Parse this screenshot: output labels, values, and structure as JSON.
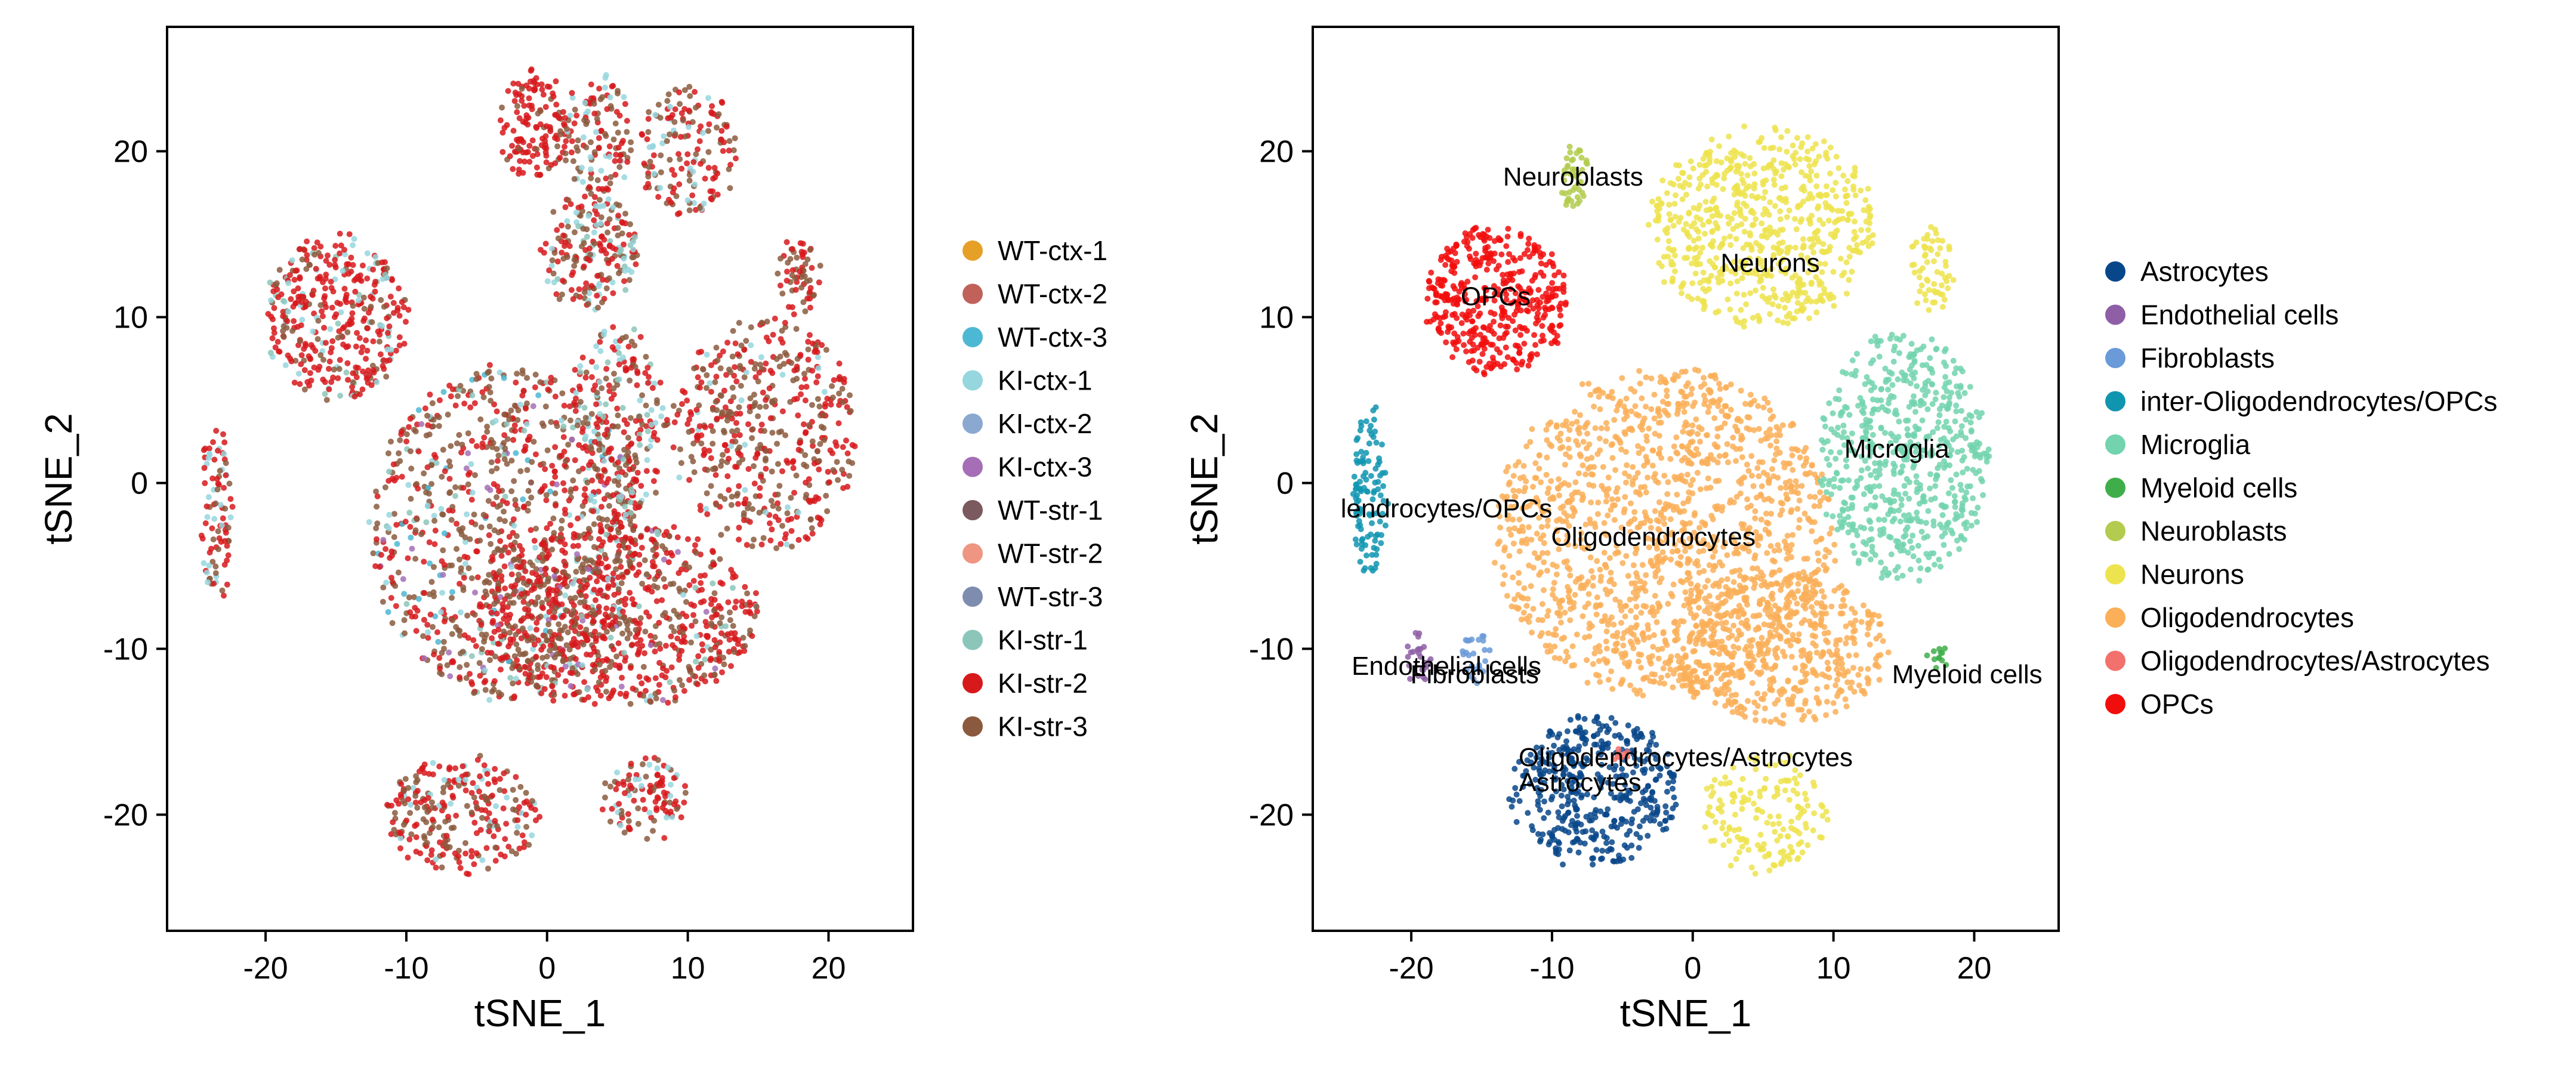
{
  "chart_data": [
    {
      "type": "scatter",
      "title": "",
      "xlabel": "tSNE_1",
      "ylabel": "tSNE_2",
      "xlim": [
        -27,
        26
      ],
      "ylim": [
        -27,
        27.5
      ],
      "xticks": [
        -20,
        -10,
        0,
        10,
        20
      ],
      "xtick_labels": [
        "-20",
        "-10",
        "0",
        "10",
        "20"
      ],
      "yticks": [
        -20,
        -10,
        0,
        10,
        20
      ],
      "ytick_labels": [
        "-20",
        "-10",
        "0",
        "10",
        "20"
      ],
      "grid": false,
      "legend_position": "right",
      "legend": [
        {
          "label": "WT-ctx-1",
          "color": "#E69F27"
        },
        {
          "label": "WT-ctx-2",
          "color": "#C0625A"
        },
        {
          "label": "WT-ctx-3",
          "color": "#4DB8D4"
        },
        {
          "label": "KI-ctx-1",
          "color": "#96D6DE"
        },
        {
          "label": "KI-ctx-2",
          "color": "#8AA8D0"
        },
        {
          "label": "KI-ctx-3",
          "color": "#A56EB6"
        },
        {
          "label": "WT-str-1",
          "color": "#7A5A5E"
        },
        {
          "label": "WT-str-2",
          "color": "#EE9682"
        },
        {
          "label": "WT-str-3",
          "color": "#7E8CB0"
        },
        {
          "label": "KI-str-1",
          "color": "#8CC6BA"
        },
        {
          "label": "KI-str-2",
          "color": "#D7191C"
        },
        {
          "label": "KI-str-3",
          "color": "#8B5A3E"
        }
      ],
      "clusters": [
        {
          "x": -3,
          "y": -3,
          "rx": 9.5,
          "ry": 10,
          "n": 950,
          "mix": [
            0.35,
            0.45,
            0.06,
            0.05,
            0.04,
            0.05
          ]
        },
        {
          "x": 5,
          "y": -8,
          "rx": 10,
          "ry": 5.5,
          "n": 800,
          "mix": [
            0.55,
            0.35,
            0.04,
            0.03,
            0.03
          ]
        },
        {
          "x": -15,
          "y": 10,
          "rx": 5,
          "ry": 5,
          "n": 380,
          "mix": [
            0.7,
            0.15,
            0.1,
            0.05
          ]
        },
        {
          "x": 15.5,
          "y": 3,
          "rx": 6.5,
          "ry": 7,
          "n": 480,
          "mix": [
            0.5,
            0.45,
            0.05
          ]
        },
        {
          "x": 3,
          "y": 14,
          "rx": 3.5,
          "ry": 3.5,
          "n": 200,
          "mix": [
            0.35,
            0.35,
            0.2,
            0.1
          ]
        },
        {
          "x": 5,
          "y": 3.5,
          "rx": 3.5,
          "ry": 6,
          "n": 260,
          "mix": [
            0.45,
            0.25,
            0.2,
            0.1
          ]
        },
        {
          "x": -1,
          "y": 21.5,
          "rx": 2.5,
          "ry": 3.5,
          "n": 130,
          "mix": [
            0.8,
            0.2
          ]
        },
        {
          "x": 3.5,
          "y": 21,
          "rx": 2.5,
          "ry": 3.5,
          "n": 130,
          "mix": [
            0.4,
            0.4,
            0.2
          ]
        },
        {
          "x": 10,
          "y": 20,
          "rx": 3.5,
          "ry": 4,
          "n": 160,
          "mix": [
            0.45,
            0.4,
            0.15
          ]
        },
        {
          "x": -6,
          "y": -20,
          "rx": 5.5,
          "ry": 3.5,
          "n": 260,
          "mix": [
            0.55,
            0.3,
            0.15
          ]
        },
        {
          "x": 7,
          "y": -19,
          "rx": 3,
          "ry": 2.5,
          "n": 110,
          "mix": [
            0.5,
            0.3,
            0.2
          ]
        },
        {
          "x": -23.5,
          "y": -2,
          "rx": 1.1,
          "ry": 5.5,
          "n": 90,
          "mix": [
            0.5,
            0.3,
            0.2
          ]
        },
        {
          "x": 18,
          "y": 12.5,
          "rx": 1.5,
          "ry": 2.5,
          "n": 60,
          "mix": [
            0.5,
            0.5
          ]
        }
      ],
      "cluster_palette": [
        "#D7191C",
        "#8B5A3E",
        "#96D6DE",
        "#8CC6BA",
        "#A56EB6",
        "#4DB8D4"
      ]
    },
    {
      "type": "scatter",
      "title": "",
      "xlabel": "tSNE_1",
      "ylabel": "tSNE_2",
      "xlim": [
        -27,
        26
      ],
      "ylim": [
        -27,
        27.5
      ],
      "xticks": [
        -20,
        -10,
        0,
        10,
        20
      ],
      "xtick_labels": [
        "-20",
        "-10",
        "0",
        "10",
        "20"
      ],
      "yticks": [
        -20,
        -10,
        0,
        10,
        20
      ],
      "ytick_labels": [
        "-20",
        "-10",
        "0",
        "10",
        "20"
      ],
      "grid": false,
      "legend_position": "right",
      "legend": [
        {
          "label": "Astrocytes",
          "color": "#08468A"
        },
        {
          "label": "Endothelial cells",
          "color": "#8E5FA6"
        },
        {
          "label": "Fibroblasts",
          "color": "#6A9AD8"
        },
        {
          "label": "inter-Oligodendrocytes/OPCs",
          "color": "#1095B0"
        },
        {
          "label": "Microglia",
          "color": "#72D3AE"
        },
        {
          "label": "Myeloid cells",
          "color": "#3FAE4A"
        },
        {
          "label": "Neuroblasts",
          "color": "#B3CB4E"
        },
        {
          "label": "Neurons",
          "color": "#EDE34E"
        },
        {
          "label": "Oligodendrocytes",
          "color": "#FAAF58"
        },
        {
          "label": "Oligodendrocytes/Astrocytes",
          "color": "#F2716C"
        },
        {
          "label": "OPCs",
          "color": "#F20D0D"
        }
      ],
      "clusters": [
        {
          "label": "Oligodendrocytes",
          "x": -2,
          "y": -3,
          "rx": 12,
          "ry": 10,
          "n": 1400,
          "color": "#FAAF58"
        },
        {
          "label": "Oligodendrocytes",
          "x": 6,
          "y": -10,
          "rx": 8,
          "ry": 4.5,
          "n": 500,
          "color": "#FAAF58"
        },
        {
          "label": "Microglia",
          "x": 15,
          "y": 1.5,
          "rx": 6,
          "ry": 7.5,
          "n": 600,
          "color": "#72D3AE"
        },
        {
          "label": "OPCs",
          "x": -14,
          "y": 11,
          "rx": 5,
          "ry": 4.5,
          "n": 420,
          "color": "#F20D0D"
        },
        {
          "label": "Astrocytes",
          "x": -7,
          "y": -18.5,
          "rx": 6,
          "ry": 4.5,
          "n": 420,
          "color": "#08468A"
        },
        {
          "label": "Neurons",
          "x": 5,
          "y": 15.5,
          "rx": 8,
          "ry": 6,
          "n": 650,
          "color": "#EDE34E"
        },
        {
          "label": "Neurons",
          "x": 5,
          "y": -20,
          "rx": 4.5,
          "ry": 3.5,
          "n": 160,
          "color": "#EDE34E"
        },
        {
          "label": "Neurons",
          "x": 17,
          "y": 13,
          "rx": 1.6,
          "ry": 2.5,
          "n": 60,
          "color": "#EDE34E"
        },
        {
          "label": "Neuroblasts",
          "x": -8.5,
          "y": 18.5,
          "rx": 0.9,
          "ry": 2.2,
          "n": 45,
          "color": "#B3CB4E"
        },
        {
          "label": "inter-Oligodendrocytes/OPCs",
          "x": -23,
          "y": -0.5,
          "rx": 1.2,
          "ry": 5,
          "n": 110,
          "color": "#1095B0"
        },
        {
          "label": "Endothelial cells",
          "x": -19.5,
          "y": -10.5,
          "rx": 0.8,
          "ry": 1.5,
          "n": 25,
          "color": "#8E5FA6"
        },
        {
          "label": "Fibroblasts",
          "x": -15.5,
          "y": -10.5,
          "rx": 0.8,
          "ry": 1.6,
          "n": 25,
          "color": "#6A9AD8"
        },
        {
          "label": "Myeloid cells",
          "x": 17.5,
          "y": -10.5,
          "rx": 0.5,
          "ry": 0.6,
          "n": 12,
          "color": "#3FAE4A"
        },
        {
          "label": "Oligodendrocytes/Astrocytes",
          "x": -5,
          "y": -16.5,
          "rx": 0.5,
          "ry": 0.4,
          "n": 8,
          "color": "#F2716C"
        }
      ],
      "annotations": [
        {
          "text": "Neuroblasts",
          "x": -8.5,
          "y": 18.5
        },
        {
          "text": "Neurons",
          "x": 5.5,
          "y": 13.3
        },
        {
          "text": "OPCs",
          "x": -14,
          "y": 11.3
        },
        {
          "text": "Microglia",
          "x": 14.5,
          "y": 2.1
        },
        {
          "text": "lendrocytes/OPCs",
          "x": -17.5,
          "y": -1.5
        },
        {
          "text": "Oligodendrocytes",
          "x": -2.8,
          "y": -3.2
        },
        {
          "text": "Endothelial cells",
          "x": -17.5,
          "y": -11
        },
        {
          "text": "Fibroblasts",
          "x": -15.5,
          "y": -11.5
        },
        {
          "text": "Myeloid cells",
          "x": 19.5,
          "y": -11.5
        },
        {
          "text": "Oligodendrocytes/Astrocytes",
          "x": -0.5,
          "y": -16.5
        },
        {
          "text": "Astrocytes",
          "x": -8,
          "y": -18
        }
      ]
    }
  ]
}
